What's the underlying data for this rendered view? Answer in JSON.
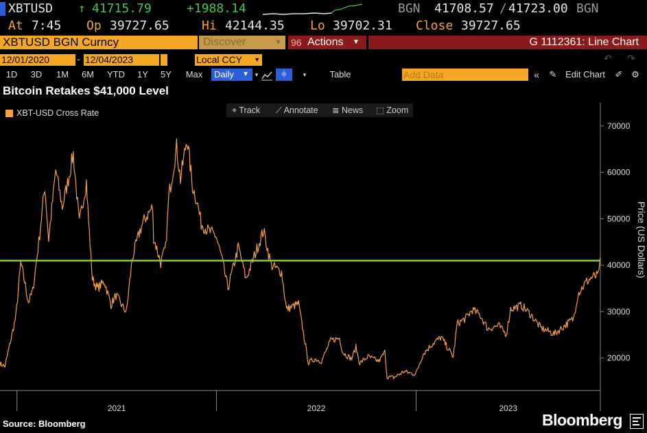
{
  "ticker": {
    "symbol": "XBTUSD",
    "last_price": "41715.79",
    "change": "+1988.14",
    "source": "BGN",
    "bid": "41708.57",
    "ask": "41723.00",
    "source2": "BGN"
  },
  "stats": {
    "at_label": "At",
    "at_value": "7:45",
    "open_label": "Op",
    "open_value": "39727.65",
    "high_label": "Hi",
    "high_value": "42144.35",
    "low_label": "Lo",
    "low_value": "39702.31",
    "close_label": "Close",
    "close_value": "39727.65"
  },
  "security_bar": {
    "name": "XBTUSD BGN Curncy",
    "discover": "Discover",
    "actions_num": "96",
    "actions": "Actions",
    "chart_id": "G 1112361: Line Chart"
  },
  "date_range": {
    "start": "12/01/2020",
    "end": "12/04/2023",
    "currency": "Local CCY"
  },
  "toolbar": {
    "periods": [
      "1D",
      "3D",
      "1M",
      "6M",
      "YTD",
      "1Y",
      "5Y",
      "Max"
    ],
    "frequency": "Daily",
    "table": "Table",
    "add_data_placeholder": "Add Data",
    "edit_chart": "Edit Chart"
  },
  "chart_menu": {
    "track": "Track",
    "annotate": "Annotate",
    "news": "News",
    "zoom": "Zoom"
  },
  "footer": {
    "source": "Source: Bloomberg",
    "brand": "Bloomberg"
  },
  "colors": {
    "series": "#f5a14a",
    "reference_line": "#7fd321",
    "accent_orange": "#f5a623",
    "selected_blue": "#2b5fd9"
  },
  "chart_data": {
    "type": "line",
    "title": "Bitcoin Retakes $41,000 Level",
    "legend": "XBT-USD Cross Rate",
    "ylabel": "Price (US Dollars)",
    "ylim": [
      13000,
      75000
    ],
    "yticks": [
      20000,
      30000,
      40000,
      50000,
      60000,
      70000
    ],
    "ytick_labels": [
      "20000",
      "30000",
      "40000",
      "50000",
      "60000",
      "70000"
    ],
    "xlim": [
      "2020-12-01",
      "2023-12-04"
    ],
    "xtick_labels": [
      "2021",
      "2022",
      "2023"
    ],
    "reference_line": 41000,
    "series": [
      {
        "points": [
          [
            "2020-12-01",
            18800
          ],
          [
            "2020-12-10",
            18200
          ],
          [
            "2020-12-20",
            23500
          ],
          [
            "2020-12-30",
            28900
          ],
          [
            "2021-01-08",
            40500
          ],
          [
            "2021-01-15",
            36500
          ],
          [
            "2021-01-22",
            32000
          ],
          [
            "2021-01-30",
            34500
          ],
          [
            "2021-02-10",
            45000
          ],
          [
            "2021-02-21",
            57000
          ],
          [
            "2021-02-28",
            45500
          ],
          [
            "2021-03-13",
            60500
          ],
          [
            "2021-03-25",
            52500
          ],
          [
            "2021-04-05",
            58500
          ],
          [
            "2021-04-14",
            64000
          ],
          [
            "2021-04-25",
            49000
          ],
          [
            "2021-05-08",
            58000
          ],
          [
            "2021-05-12",
            49500
          ],
          [
            "2021-05-19",
            37000
          ],
          [
            "2021-05-28",
            35000
          ],
          [
            "2021-06-10",
            36500
          ],
          [
            "2021-06-22",
            31500
          ],
          [
            "2021-07-01",
            33500
          ],
          [
            "2021-07-20",
            29800
          ],
          [
            "2021-07-31",
            41500
          ],
          [
            "2021-08-14",
            47500
          ],
          [
            "2021-08-23",
            50000
          ],
          [
            "2021-09-06",
            52500
          ],
          [
            "2021-09-08",
            46000
          ],
          [
            "2021-09-21",
            40500
          ],
          [
            "2021-09-30",
            43800
          ],
          [
            "2021-10-06",
            55000
          ],
          [
            "2021-10-20",
            65500
          ],
          [
            "2021-10-27",
            58500
          ],
          [
            "2021-11-08",
            67500
          ],
          [
            "2021-11-18",
            57000
          ],
          [
            "2021-11-26",
            54000
          ],
          [
            "2021-12-04",
            49000
          ],
          [
            "2021-12-16",
            47500
          ],
          [
            "2021-12-31",
            46300
          ],
          [
            "2022-01-10",
            41800
          ],
          [
            "2022-01-22",
            35000
          ],
          [
            "2022-02-10",
            44000
          ],
          [
            "2022-02-24",
            37000
          ],
          [
            "2022-03-28",
            47500
          ],
          [
            "2022-04-11",
            40000
          ],
          [
            "2022-04-30",
            38500
          ],
          [
            "2022-05-09",
            30500
          ],
          [
            "2022-05-31",
            31700
          ],
          [
            "2022-06-13",
            22500
          ],
          [
            "2022-06-18",
            19000
          ],
          [
            "2022-06-30",
            19800
          ],
          [
            "2022-07-12",
            19300
          ],
          [
            "2022-07-29",
            23800
          ],
          [
            "2022-08-14",
            24300
          ],
          [
            "2022-08-20",
            21200
          ],
          [
            "2022-09-05",
            19800
          ],
          [
            "2022-09-13",
            22300
          ],
          [
            "2022-09-20",
            18900
          ],
          [
            "2022-10-05",
            20300
          ],
          [
            "2022-10-25",
            19300
          ],
          [
            "2022-11-05",
            21300
          ],
          [
            "2022-11-09",
            15900
          ],
          [
            "2022-11-21",
            15800
          ],
          [
            "2022-12-10",
            17100
          ],
          [
            "2022-12-31",
            16500
          ],
          [
            "2023-01-14",
            20900
          ],
          [
            "2023-01-31",
            23100
          ],
          [
            "2023-02-16",
            24500
          ],
          [
            "2023-03-10",
            20200
          ],
          [
            "2023-03-17",
            27400
          ],
          [
            "2023-04-01",
            28500
          ],
          [
            "2023-04-14",
            30400
          ],
          [
            "2023-04-28",
            29300
          ],
          [
            "2023-05-12",
            26300
          ],
          [
            "2023-06-01",
            27000
          ],
          [
            "2023-06-15",
            25100
          ],
          [
            "2023-06-23",
            30600
          ],
          [
            "2023-07-13",
            31300
          ],
          [
            "2023-07-31",
            29200
          ],
          [
            "2023-08-17",
            26500
          ],
          [
            "2023-09-11",
            25200
          ],
          [
            "2023-09-30",
            27000
          ],
          [
            "2023-10-16",
            28500
          ],
          [
            "2023-10-24",
            33900
          ],
          [
            "2023-11-09",
            36500
          ],
          [
            "2023-11-20",
            37500
          ],
          [
            "2023-11-30",
            37700
          ],
          [
            "2023-12-04",
            41700
          ]
        ]
      }
    ]
  }
}
